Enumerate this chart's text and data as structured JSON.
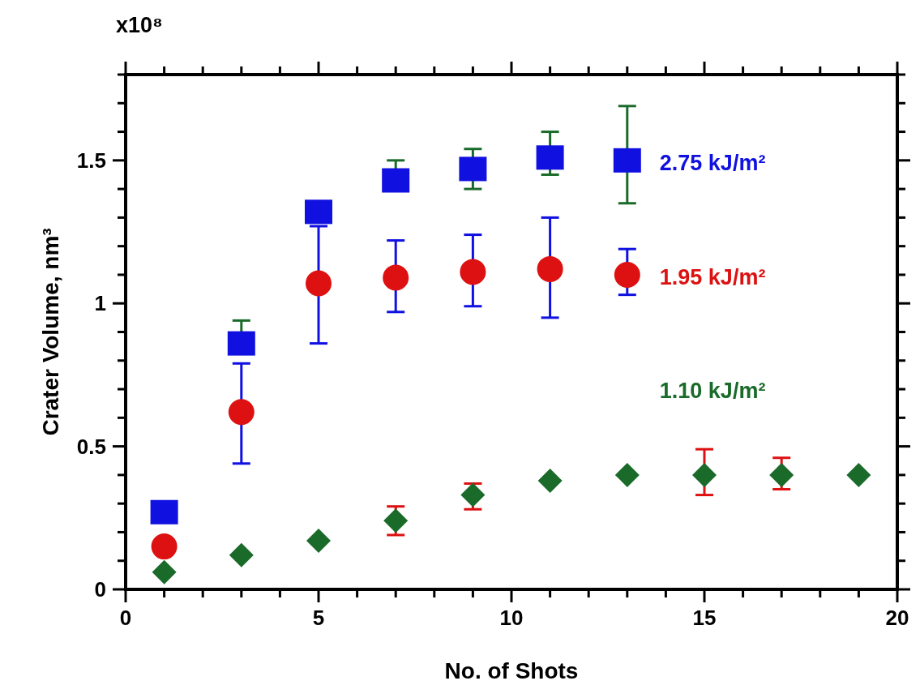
{
  "chart_data": {
    "type": "scatter",
    "xlabel": "No. of Shots",
    "ylabel": "Crater Volume, nm³",
    "annotations": [
      "x10⁸"
    ],
    "x": [
      1,
      3,
      5,
      7,
      9,
      11,
      13,
      15,
      17,
      19
    ],
    "xlim": [
      0,
      20
    ],
    "ylim": [
      0,
      1.8
    ],
    "xticks": [
      0,
      {
        "value": 1,
        "label": null
      },
      {
        "value": 2,
        "label": null
      },
      {
        "value": 3,
        "label": null
      },
      {
        "value": 4,
        "label": null
      },
      5,
      {
        "value": 6,
        "label": null
      },
      {
        "value": 7,
        "label": null
      },
      {
        "value": 8,
        "label": null
      },
      {
        "value": 9,
        "label": null
      },
      10,
      {
        "value": 11,
        "label": null
      },
      {
        "value": 12,
        "label": null
      },
      {
        "value": 13,
        "label": null
      },
      {
        "value": 14,
        "label": null
      },
      15,
      {
        "value": 16,
        "label": null
      },
      {
        "value": 17,
        "label": null
      },
      {
        "value": 18,
        "label": null
      },
      {
        "value": 19,
        "label": null
      },
      20
    ],
    "yticks": [
      0,
      {
        "value": 0.1,
        "label": null
      },
      {
        "value": 0.2,
        "label": null
      },
      {
        "value": 0.3,
        "label": null
      },
      {
        "value": 0.4,
        "label": null
      },
      0.5,
      {
        "value": 0.6,
        "label": null
      },
      {
        "value": 0.7,
        "label": null
      },
      {
        "value": 0.8,
        "label": null
      },
      {
        "value": 0.9,
        "label": null
      },
      1,
      {
        "value": 1.1,
        "label": null
      },
      {
        "value": 1.2,
        "label": null
      },
      {
        "value": 1.3,
        "label": null
      },
      {
        "value": 1.4,
        "label": null
      },
      1.5,
      {
        "value": 1.6,
        "label": null
      },
      {
        "value": 1.7,
        "label": null
      },
      {
        "value": 1.8,
        "label": null
      }
    ],
    "series": [
      {
        "name": "2.75 kJ/m²",
        "color": "#1010e0",
        "marker": "square",
        "values": [
          0.27,
          0.86,
          1.32,
          1.43,
          1.47,
          1.51,
          1.5,
          null,
          null,
          null
        ],
        "errors": [
          null,
          [
            0.86,
            0.94
          ],
          null,
          [
            1.43,
            1.5
          ],
          [
            1.4,
            1.54
          ],
          [
            1.45,
            1.6
          ],
          [
            1.35,
            1.69
          ],
          null,
          null,
          null
        ]
      },
      {
        "name": "1.95 kJ/m²",
        "color": "#dd1111",
        "marker": "circle",
        "values": [
          0.15,
          0.62,
          1.07,
          1.09,
          1.11,
          1.12,
          1.1,
          null,
          null,
          null
        ],
        "errors": [
          null,
          [
            0.44,
            0.79
          ],
          [
            0.86,
            1.27
          ],
          [
            0.97,
            1.22
          ],
          [
            0.99,
            1.24
          ],
          [
            0.95,
            1.3
          ],
          [
            1.03,
            1.19
          ],
          null,
          null,
          null
        ]
      },
      {
        "name": "1.10 kJ/m²",
        "color": "#1a6b2a",
        "marker": "diamond",
        "values": [
          0.06,
          0.12,
          0.17,
          0.24,
          0.33,
          0.38,
          0.4,
          0.4,
          0.4,
          0.4
        ],
        "errors": [
          null,
          null,
          null,
          [
            0.19,
            0.29
          ],
          [
            0.28,
            0.37
          ],
          null,
          null,
          [
            0.33,
            0.49
          ],
          [
            0.35,
            0.46
          ],
          null
        ]
      }
    ]
  }
}
